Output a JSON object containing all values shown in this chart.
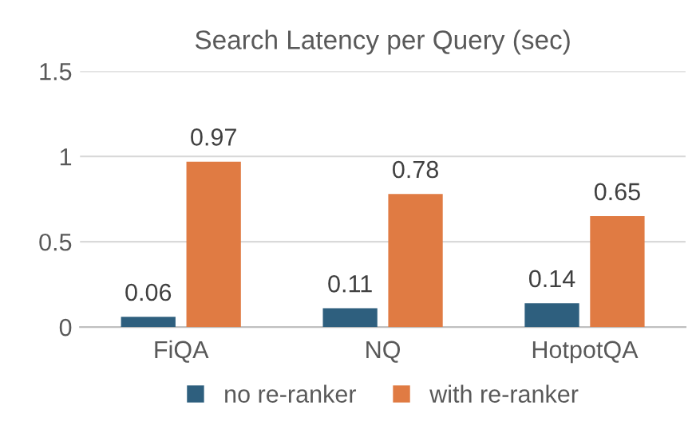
{
  "chart_data": {
    "type": "bar",
    "title": "Search Latency per Query (sec)",
    "categories": [
      "FiQA",
      "NQ",
      "HotpotQA"
    ],
    "series": [
      {
        "name": "no re-ranker",
        "color": "#2e5f7e",
        "values": [
          0.06,
          0.11,
          0.14
        ]
      },
      {
        "name": "with re-ranker",
        "color": "#e07b43",
        "values": [
          0.97,
          0.78,
          0.65
        ]
      }
    ],
    "ylim": [
      0,
      1.5
    ],
    "yticks": [
      0,
      0.5,
      1,
      1.5
    ],
    "grid": "y",
    "legend": "bottom",
    "data_labels": true
  }
}
